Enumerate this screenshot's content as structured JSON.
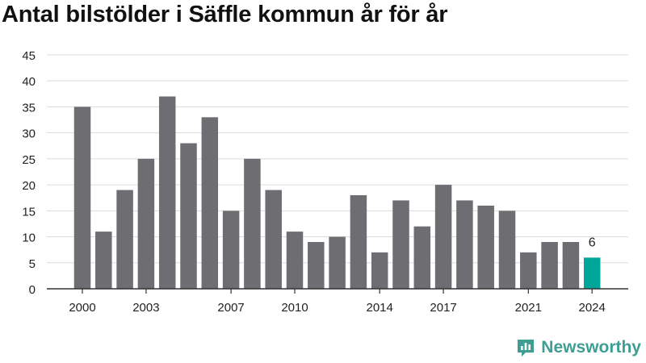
{
  "chart_data": {
    "type": "bar",
    "title": "Antal bilstölder i Säffle kommun år för år",
    "categories": [
      "2000",
      "2001",
      "2002",
      "2003",
      "2004",
      "2005",
      "2006",
      "2007",
      "2008",
      "2009",
      "2010",
      "2011",
      "2012",
      "2013",
      "2014",
      "2015",
      "2016",
      "2017",
      "2018",
      "2019",
      "2020",
      "2021",
      "2022",
      "2023",
      "2024"
    ],
    "values": [
      35,
      11,
      19,
      25,
      37,
      28,
      33,
      15,
      25,
      19,
      11,
      9,
      10,
      18,
      7,
      17,
      12,
      20,
      17,
      16,
      15,
      7,
      9,
      9,
      6
    ],
    "x_tick_labels": [
      "2000",
      "2003",
      "2007",
      "2010",
      "2014",
      "2017",
      "2021",
      "2024"
    ],
    "y_ticks": [
      0,
      5,
      10,
      15,
      20,
      25,
      30,
      35,
      40,
      45
    ],
    "ylim": [
      0,
      45
    ],
    "xlabel": "",
    "ylabel": "",
    "grid": true,
    "bar_color": "#6e6d72",
    "highlight_color": "#00a699",
    "highlight_category": "2024",
    "data_labels": [
      {
        "category": "2024",
        "text": "6"
      }
    ]
  },
  "brand": {
    "name": "Newsworthy",
    "icon": "newsworthy-logo-icon",
    "color": "#3e9e93"
  }
}
